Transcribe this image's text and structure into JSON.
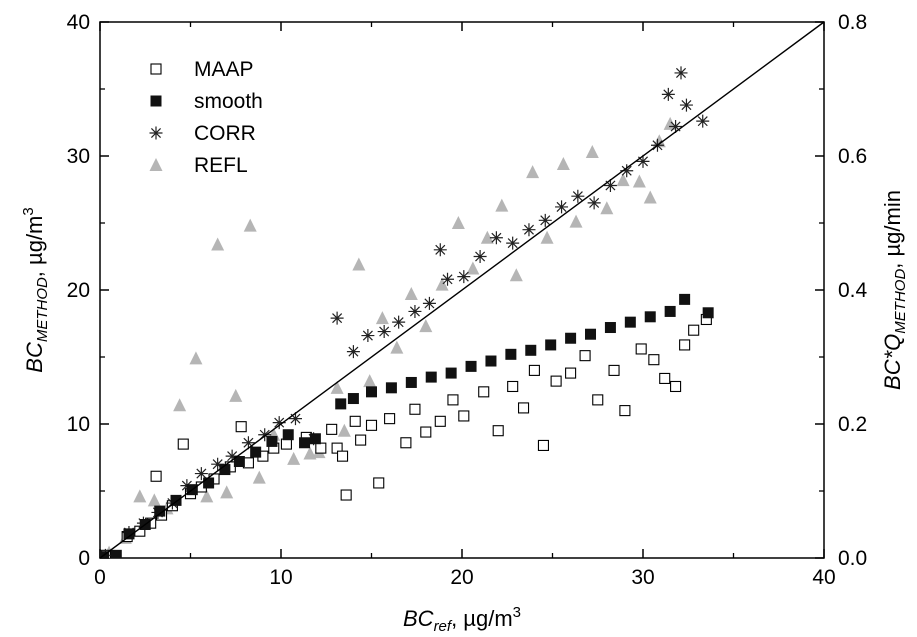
{
  "chart_data": {
    "type": "scatter",
    "xlabel": {
      "main": "BC",
      "sub": "ref",
      "rest": ", µg/m",
      "sup": "3"
    },
    "ylabel_left": {
      "main": "BC",
      "sub": "METHOD",
      "rest": ", µg/m",
      "sup": "3"
    },
    "ylabel_right": {
      "main": "BC*Q",
      "sub": "METHOD",
      "rest": ", µg/min"
    },
    "xlim": [
      0,
      40
    ],
    "ylim_left": [
      0,
      40
    ],
    "ylim_right": [
      0.0,
      0.8
    ],
    "x_ticks": [
      "0",
      "10",
      "20",
      "30",
      "40"
    ],
    "y_ticks_left": [
      "0",
      "10",
      "20",
      "30",
      "40"
    ],
    "y_ticks_right": [
      "0.0",
      "0.2",
      "0.4",
      "0.6",
      "0.8"
    ],
    "grid": false,
    "legend_position": "top-left",
    "reference_line": {
      "from": [
        0,
        0
      ],
      "to": [
        40,
        40
      ]
    },
    "series": [
      {
        "name": "MAAP",
        "marker": "open-square",
        "points": [
          [
            0.3,
            0.2
          ],
          [
            1.5,
            1.6
          ],
          [
            2.2,
            2.0
          ],
          [
            2.8,
            2.6
          ],
          [
            3.1,
            6.1
          ],
          [
            3.4,
            3.2
          ],
          [
            4.0,
            3.9
          ],
          [
            4.6,
            8.5
          ],
          [
            5.0,
            4.8
          ],
          [
            5.6,
            5.3
          ],
          [
            6.3,
            5.9
          ],
          [
            7.2,
            6.8
          ],
          [
            7.8,
            9.8
          ],
          [
            8.2,
            7.1
          ],
          [
            9.0,
            7.6
          ],
          [
            9.6,
            8.2
          ],
          [
            10.3,
            8.5
          ],
          [
            11.4,
            9.0
          ],
          [
            12.2,
            8.2
          ],
          [
            12.8,
            9.6
          ],
          [
            13.1,
            8.2
          ],
          [
            13.4,
            7.6
          ],
          [
            13.6,
            4.7
          ],
          [
            14.1,
            10.2
          ],
          [
            14.4,
            8.8
          ],
          [
            15.0,
            9.9
          ],
          [
            15.4,
            5.6
          ],
          [
            16.0,
            10.4
          ],
          [
            16.9,
            8.6
          ],
          [
            17.4,
            11.1
          ],
          [
            18.0,
            9.4
          ],
          [
            18.8,
            10.2
          ],
          [
            19.5,
            11.8
          ],
          [
            20.1,
            10.6
          ],
          [
            21.2,
            12.4
          ],
          [
            22.0,
            9.5
          ],
          [
            22.8,
            12.8
          ],
          [
            23.4,
            11.2
          ],
          [
            24.0,
            14.0
          ],
          [
            24.5,
            8.4
          ],
          [
            25.2,
            13.2
          ],
          [
            26.0,
            13.8
          ],
          [
            26.8,
            15.1
          ],
          [
            27.5,
            11.8
          ],
          [
            28.4,
            14.0
          ],
          [
            29.0,
            11.0
          ],
          [
            29.9,
            15.6
          ],
          [
            30.6,
            14.8
          ],
          [
            31.2,
            13.4
          ],
          [
            31.8,
            12.8
          ],
          [
            32.3,
            15.9
          ],
          [
            32.8,
            17.0
          ],
          [
            33.5,
            17.8
          ]
        ]
      },
      {
        "name": "smooth",
        "marker": "filled-square",
        "points": [
          [
            0.2,
            0.1
          ],
          [
            0.9,
            0.2
          ],
          [
            1.6,
            1.8
          ],
          [
            2.5,
            2.5
          ],
          [
            3.3,
            3.5
          ],
          [
            4.2,
            4.3
          ],
          [
            5.1,
            5.1
          ],
          [
            6.0,
            5.6
          ],
          [
            6.9,
            6.6
          ],
          [
            7.7,
            7.2
          ],
          [
            8.6,
            7.9
          ],
          [
            9.5,
            8.7
          ],
          [
            10.4,
            9.2
          ],
          [
            11.3,
            8.6
          ],
          [
            11.9,
            8.9
          ],
          [
            13.3,
            11.5
          ],
          [
            14.0,
            11.9
          ],
          [
            15.0,
            12.4
          ],
          [
            16.1,
            12.7
          ],
          [
            17.2,
            13.1
          ],
          [
            18.3,
            13.5
          ],
          [
            19.4,
            13.8
          ],
          [
            20.5,
            14.3
          ],
          [
            21.6,
            14.7
          ],
          [
            22.7,
            15.2
          ],
          [
            23.8,
            15.5
          ],
          [
            24.9,
            15.9
          ],
          [
            26.0,
            16.4
          ],
          [
            27.1,
            16.7
          ],
          [
            28.2,
            17.2
          ],
          [
            29.3,
            17.6
          ],
          [
            30.4,
            18.0
          ],
          [
            31.5,
            18.4
          ],
          [
            32.3,
            19.3
          ],
          [
            33.6,
            18.3
          ]
        ]
      },
      {
        "name": "CORR",
        "marker": "asterisk",
        "points": [
          [
            0.3,
            0.2
          ],
          [
            1.6,
            1.9
          ],
          [
            2.4,
            2.6
          ],
          [
            3.2,
            3.4
          ],
          [
            4.0,
            4.1
          ],
          [
            4.8,
            5.4
          ],
          [
            5.6,
            6.3
          ],
          [
            6.5,
            7.0
          ],
          [
            7.3,
            7.6
          ],
          [
            8.2,
            8.6
          ],
          [
            9.1,
            9.2
          ],
          [
            9.9,
            10.1
          ],
          [
            10.8,
            10.4
          ],
          [
            11.8,
            8.9
          ],
          [
            13.1,
            17.9
          ],
          [
            14.0,
            15.4
          ],
          [
            14.8,
            16.6
          ],
          [
            15.7,
            16.9
          ],
          [
            16.5,
            17.6
          ],
          [
            17.4,
            18.4
          ],
          [
            18.2,
            19.0
          ],
          [
            18.8,
            23.0
          ],
          [
            19.2,
            20.8
          ],
          [
            20.1,
            21.0
          ],
          [
            21.0,
            22.5
          ],
          [
            21.9,
            23.9
          ],
          [
            22.8,
            23.5
          ],
          [
            23.7,
            24.5
          ],
          [
            24.6,
            25.2
          ],
          [
            25.5,
            26.2
          ],
          [
            26.4,
            27.0
          ],
          [
            27.3,
            26.5
          ],
          [
            28.2,
            27.8
          ],
          [
            29.1,
            28.9
          ],
          [
            30.0,
            29.6
          ],
          [
            30.8,
            30.8
          ],
          [
            31.4,
            34.6
          ],
          [
            31.8,
            32.2
          ],
          [
            32.1,
            36.2
          ],
          [
            32.4,
            33.8
          ],
          [
            33.3,
            32.6
          ]
        ]
      },
      {
        "name": "REFL",
        "marker": "triangle",
        "points": [
          [
            0.5,
            0.4
          ],
          [
            1.4,
            1.5
          ],
          [
            2.2,
            4.6
          ],
          [
            3.0,
            4.3
          ],
          [
            3.7,
            3.7
          ],
          [
            4.4,
            11.4
          ],
          [
            5.3,
            14.9
          ],
          [
            5.9,
            4.6
          ],
          [
            6.5,
            23.4
          ],
          [
            7.0,
            4.9
          ],
          [
            7.5,
            12.1
          ],
          [
            8.3,
            24.8
          ],
          [
            8.8,
            6.0
          ],
          [
            9.6,
            9.2
          ],
          [
            10.7,
            7.4
          ],
          [
            11.6,
            7.8
          ],
          [
            12.1,
            7.9
          ],
          [
            13.1,
            12.7
          ],
          [
            13.5,
            9.5
          ],
          [
            14.3,
            21.9
          ],
          [
            14.9,
            13.2
          ],
          [
            15.6,
            17.9
          ],
          [
            16.4,
            15.7
          ],
          [
            17.2,
            19.7
          ],
          [
            18.0,
            17.3
          ],
          [
            18.9,
            20.4
          ],
          [
            19.8,
            25.0
          ],
          [
            20.6,
            21.6
          ],
          [
            21.4,
            23.9
          ],
          [
            22.2,
            26.3
          ],
          [
            23.0,
            21.1
          ],
          [
            23.9,
            28.8
          ],
          [
            24.7,
            23.9
          ],
          [
            25.6,
            29.4
          ],
          [
            26.3,
            25.1
          ],
          [
            27.2,
            30.3
          ],
          [
            28.0,
            26.1
          ],
          [
            28.9,
            28.2
          ],
          [
            29.8,
            28.1
          ],
          [
            30.4,
            26.9
          ],
          [
            30.9,
            31.1
          ],
          [
            31.5,
            32.4
          ]
        ]
      }
    ]
  }
}
